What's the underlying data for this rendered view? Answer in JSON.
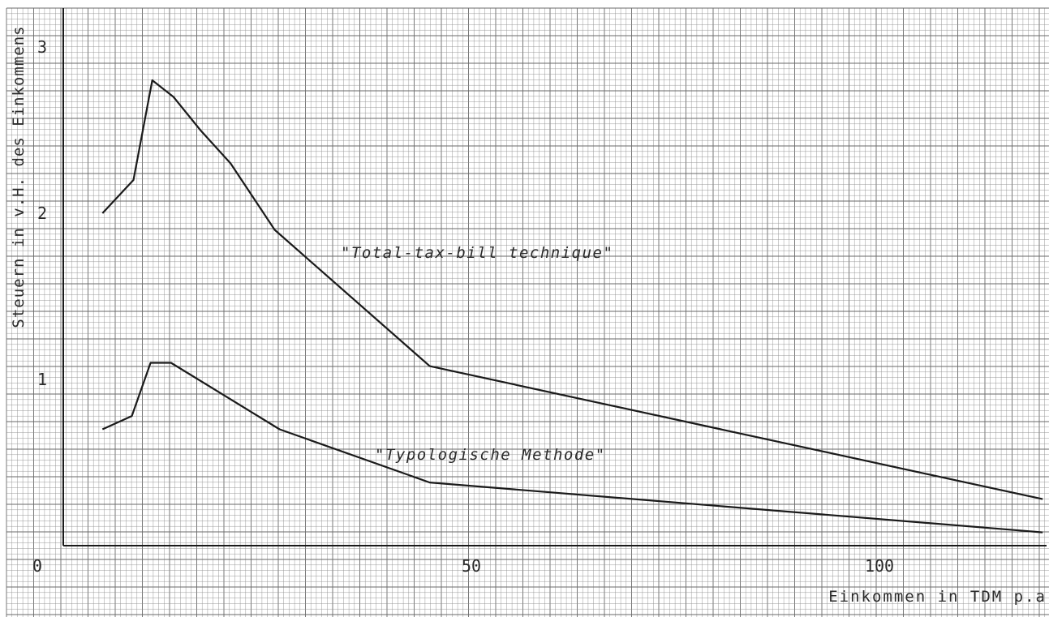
{
  "chart_data": {
    "type": "line",
    "title": "",
    "xlabel": "Einkommen in TDM p.a",
    "ylabel": "Steuern in v.H. des Einkommens",
    "xlim": [
      0,
      120
    ],
    "ylim": [
      0,
      3.2
    ],
    "x_ticks": [
      "0",
      "50",
      "100"
    ],
    "y_ticks": [
      "1",
      "2",
      "3"
    ],
    "grid": true,
    "series": [
      {
        "name": "\"Total-tax-bill technique\"",
        "x": [
          4.8,
          8.6,
          10.9,
          13.5,
          16.8,
          20.5,
          25.9,
          44.9,
          120
        ],
        "y": [
          2.0,
          2.2,
          2.8,
          2.7,
          2.5,
          2.3,
          1.9,
          1.08,
          0.28
        ]
      },
      {
        "name": "\"Typologische Methode\"",
        "x": [
          4.8,
          8.4,
          10.7,
          13.2,
          26.5,
          44.9,
          120
        ],
        "y": [
          0.7,
          0.78,
          1.1,
          1.1,
          0.7,
          0.38,
          0.08
        ]
      }
    ],
    "colors": {
      "line": "#1a1a1a",
      "grid": "#8f8f8f",
      "grid_major": "#6a6a6a"
    }
  }
}
